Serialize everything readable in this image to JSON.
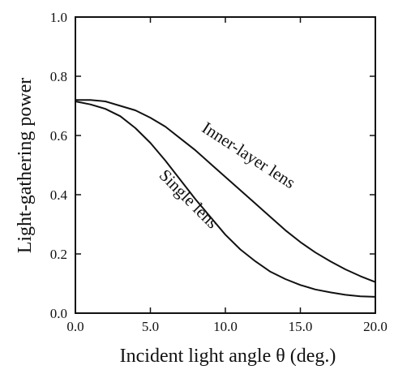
{
  "chart_data": {
    "type": "line",
    "xlabel": "Incident light angle θ (deg.)",
    "ylabel": "Light-gathering power",
    "xlim": [
      0,
      20
    ],
    "ylim": [
      0,
      1.0
    ],
    "x_ticks": [
      0,
      5,
      10,
      15,
      20
    ],
    "x_tick_labels": [
      "0.0",
      "5.0",
      "10.0",
      "15.0",
      "20.0"
    ],
    "y_ticks": [
      0,
      0.2,
      0.4,
      0.6,
      0.8,
      1.0
    ],
    "y_tick_labels": [
      "0.0",
      "0.2",
      "0.4",
      "0.6",
      "0.8",
      "1.0"
    ],
    "grid": false,
    "series": [
      {
        "name": "Inner-layer lens",
        "x": [
          0,
          1,
          2,
          3,
          4,
          5,
          6,
          7,
          8,
          9,
          10,
          11,
          12,
          13,
          14,
          15,
          16,
          17,
          18,
          19,
          20
        ],
        "y": [
          0.72,
          0.72,
          0.715,
          0.7,
          0.685,
          0.66,
          0.63,
          0.59,
          0.55,
          0.505,
          0.46,
          0.415,
          0.37,
          0.325,
          0.28,
          0.24,
          0.205,
          0.175,
          0.148,
          0.125,
          0.105
        ]
      },
      {
        "name": "Single lens",
        "x": [
          0,
          1,
          2,
          3,
          4,
          5,
          6,
          7,
          8,
          9,
          10,
          11,
          12,
          13,
          14,
          15,
          16,
          17,
          18,
          19,
          20
        ],
        "y": [
          0.715,
          0.705,
          0.69,
          0.665,
          0.625,
          0.575,
          0.515,
          0.45,
          0.385,
          0.325,
          0.265,
          0.215,
          0.175,
          0.14,
          0.115,
          0.095,
          0.08,
          0.07,
          0.062,
          0.057,
          0.055
        ]
      }
    ],
    "line_color": "#111111"
  }
}
